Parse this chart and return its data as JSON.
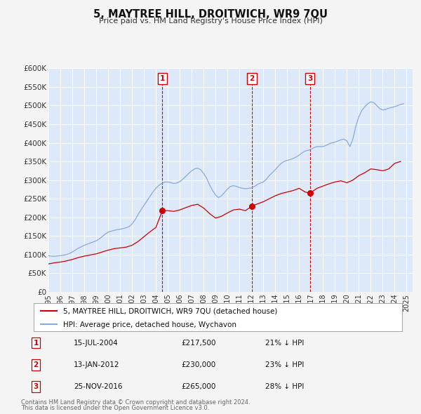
{
  "title": "5, MAYTREE HILL, DROITWICH, WR9 7QU",
  "subtitle": "Price paid vs. HM Land Registry's House Price Index (HPI)",
  "ylim": [
    0,
    600000
  ],
  "yticks": [
    0,
    50000,
    100000,
    150000,
    200000,
    250000,
    300000,
    350000,
    400000,
    450000,
    500000,
    550000,
    600000
  ],
  "ytick_labels": [
    "£0",
    "£50K",
    "£100K",
    "£150K",
    "£200K",
    "£250K",
    "£300K",
    "£350K",
    "£400K",
    "£450K",
    "£500K",
    "£550K",
    "£600K"
  ],
  "xlim_start": 1995.0,
  "xlim_end": 2025.5,
  "fig_bg_color": "#f4f4f4",
  "plot_bg_color": "#dde8f8",
  "grid_color": "#ffffff",
  "red_line_color": "#cc0000",
  "blue_line_color": "#88aadd",
  "sale_marker_color": "#cc0000",
  "vline_color": "#cc0000",
  "legend_label_red": "5, MAYTREE HILL, DROITWICH, WR9 7QU (detached house)",
  "legend_label_blue": "HPI: Average price, detached house, Wychavon",
  "transactions": [
    {
      "num": 1,
      "date_label": "15-JUL-2004",
      "date_x": 2004.54,
      "price": 217500,
      "price_label": "£217,500",
      "pct_label": "21% ↓ HPI"
    },
    {
      "num": 2,
      "date_label": "13-JAN-2012",
      "date_x": 2012.04,
      "price": 230000,
      "price_label": "£230,000",
      "pct_label": "23% ↓ HPI"
    },
    {
      "num": 3,
      "date_label": "25-NOV-2016",
      "date_x": 2016.9,
      "price": 265000,
      "price_label": "£265,000",
      "pct_label": "28% ↓ HPI"
    }
  ],
  "footer_line1": "Contains HM Land Registry data © Crown copyright and database right 2024.",
  "footer_line2": "This data is licensed under the Open Government Licence v3.0.",
  "hpi_data": {
    "x": [
      1995.0,
      1995.25,
      1995.5,
      1995.75,
      1996.0,
      1996.25,
      1996.5,
      1996.75,
      1997.0,
      1997.25,
      1997.5,
      1997.75,
      1998.0,
      1998.25,
      1998.5,
      1998.75,
      1999.0,
      1999.25,
      1999.5,
      1999.75,
      2000.0,
      2000.25,
      2000.5,
      2000.75,
      2001.0,
      2001.25,
      2001.5,
      2001.75,
      2002.0,
      2002.25,
      2002.5,
      2002.75,
      2003.0,
      2003.25,
      2003.5,
      2003.75,
      2004.0,
      2004.25,
      2004.5,
      2004.75,
      2005.0,
      2005.25,
      2005.5,
      2005.75,
      2006.0,
      2006.25,
      2006.5,
      2006.75,
      2007.0,
      2007.25,
      2007.5,
      2007.75,
      2008.0,
      2008.25,
      2008.5,
      2008.75,
      2009.0,
      2009.25,
      2009.5,
      2009.75,
      2010.0,
      2010.25,
      2010.5,
      2010.75,
      2011.0,
      2011.25,
      2011.5,
      2011.75,
      2012.0,
      2012.25,
      2012.5,
      2012.75,
      2013.0,
      2013.25,
      2013.5,
      2013.75,
      2014.0,
      2014.25,
      2014.5,
      2014.75,
      2015.0,
      2015.25,
      2015.5,
      2015.75,
      2016.0,
      2016.25,
      2016.5,
      2016.75,
      2017.0,
      2017.25,
      2017.5,
      2017.75,
      2018.0,
      2018.25,
      2018.5,
      2018.75,
      2019.0,
      2019.25,
      2019.5,
      2019.75,
      2020.0,
      2020.25,
      2020.5,
      2020.75,
      2021.0,
      2021.25,
      2021.5,
      2021.75,
      2022.0,
      2022.25,
      2022.5,
      2022.75,
      2023.0,
      2023.25,
      2023.5,
      2023.75,
      2024.0,
      2024.25,
      2024.5,
      2024.75
    ],
    "y": [
      97000,
      96000,
      95500,
      96500,
      97500,
      98500,
      100000,
      103000,
      107000,
      112000,
      117000,
      121000,
      125000,
      128000,
      131000,
      134000,
      137000,
      142000,
      148000,
      155000,
      160000,
      163000,
      165000,
      167000,
      168000,
      170000,
      172000,
      175000,
      182000,
      193000,
      207000,
      220000,
      232000,
      244000,
      256000,
      268000,
      278000,
      286000,
      291000,
      295000,
      295000,
      293000,
      291000,
      292000,
      296000,
      302000,
      310000,
      318000,
      325000,
      330000,
      332000,
      328000,
      318000,
      305000,
      287000,
      272000,
      260000,
      253000,
      258000,
      267000,
      276000,
      283000,
      285000,
      283000,
      280000,
      278000,
      277000,
      278000,
      279000,
      283000,
      288000,
      292000,
      295000,
      302000,
      312000,
      320000,
      328000,
      337000,
      345000,
      350000,
      353000,
      355000,
      358000,
      362000,
      367000,
      373000,
      378000,
      380000,
      383000,
      387000,
      390000,
      390000,
      390000,
      393000,
      397000,
      400000,
      402000,
      405000,
      408000,
      410000,
      405000,
      390000,
      410000,
      445000,
      470000,
      487000,
      497000,
      505000,
      510000,
      508000,
      500000,
      492000,
      488000,
      490000,
      493000,
      495000,
      497000,
      500000,
      503000,
      505000
    ]
  },
  "red_data": {
    "x": [
      1995.0,
      1995.5,
      1996.0,
      1996.5,
      1997.0,
      1997.5,
      1998.0,
      1998.5,
      1999.0,
      1999.5,
      2000.0,
      2000.5,
      2001.0,
      2001.5,
      2002.0,
      2002.5,
      2003.0,
      2003.5,
      2004.0,
      2004.54,
      2005.0,
      2005.5,
      2006.0,
      2006.5,
      2007.0,
      2007.5,
      2008.0,
      2008.5,
      2009.0,
      2009.5,
      2010.0,
      2010.5,
      2011.0,
      2011.5,
      2012.04,
      2012.5,
      2013.0,
      2013.5,
      2014.0,
      2014.5,
      2015.0,
      2015.5,
      2016.0,
      2016.5,
      2016.9,
      2017.5,
      2018.0,
      2018.5,
      2019.0,
      2019.5,
      2020.0,
      2020.5,
      2021.0,
      2021.5,
      2022.0,
      2022.5,
      2023.0,
      2023.5,
      2024.0,
      2024.5
    ],
    "y": [
      75000,
      78000,
      80000,
      83000,
      87000,
      92000,
      96000,
      99000,
      102000,
      107000,
      112000,
      116000,
      118000,
      120000,
      125000,
      135000,
      148000,
      161000,
      173000,
      217500,
      218000,
      216000,
      220000,
      226000,
      232000,
      235000,
      225000,
      210000,
      198000,
      203000,
      212000,
      220000,
      222000,
      218000,
      230000,
      236000,
      242000,
      250000,
      258000,
      264000,
      268000,
      272000,
      278000,
      268000,
      265000,
      278000,
      284000,
      290000,
      295000,
      298000,
      293000,
      300000,
      312000,
      320000,
      330000,
      328000,
      325000,
      330000,
      345000,
      350000
    ]
  }
}
